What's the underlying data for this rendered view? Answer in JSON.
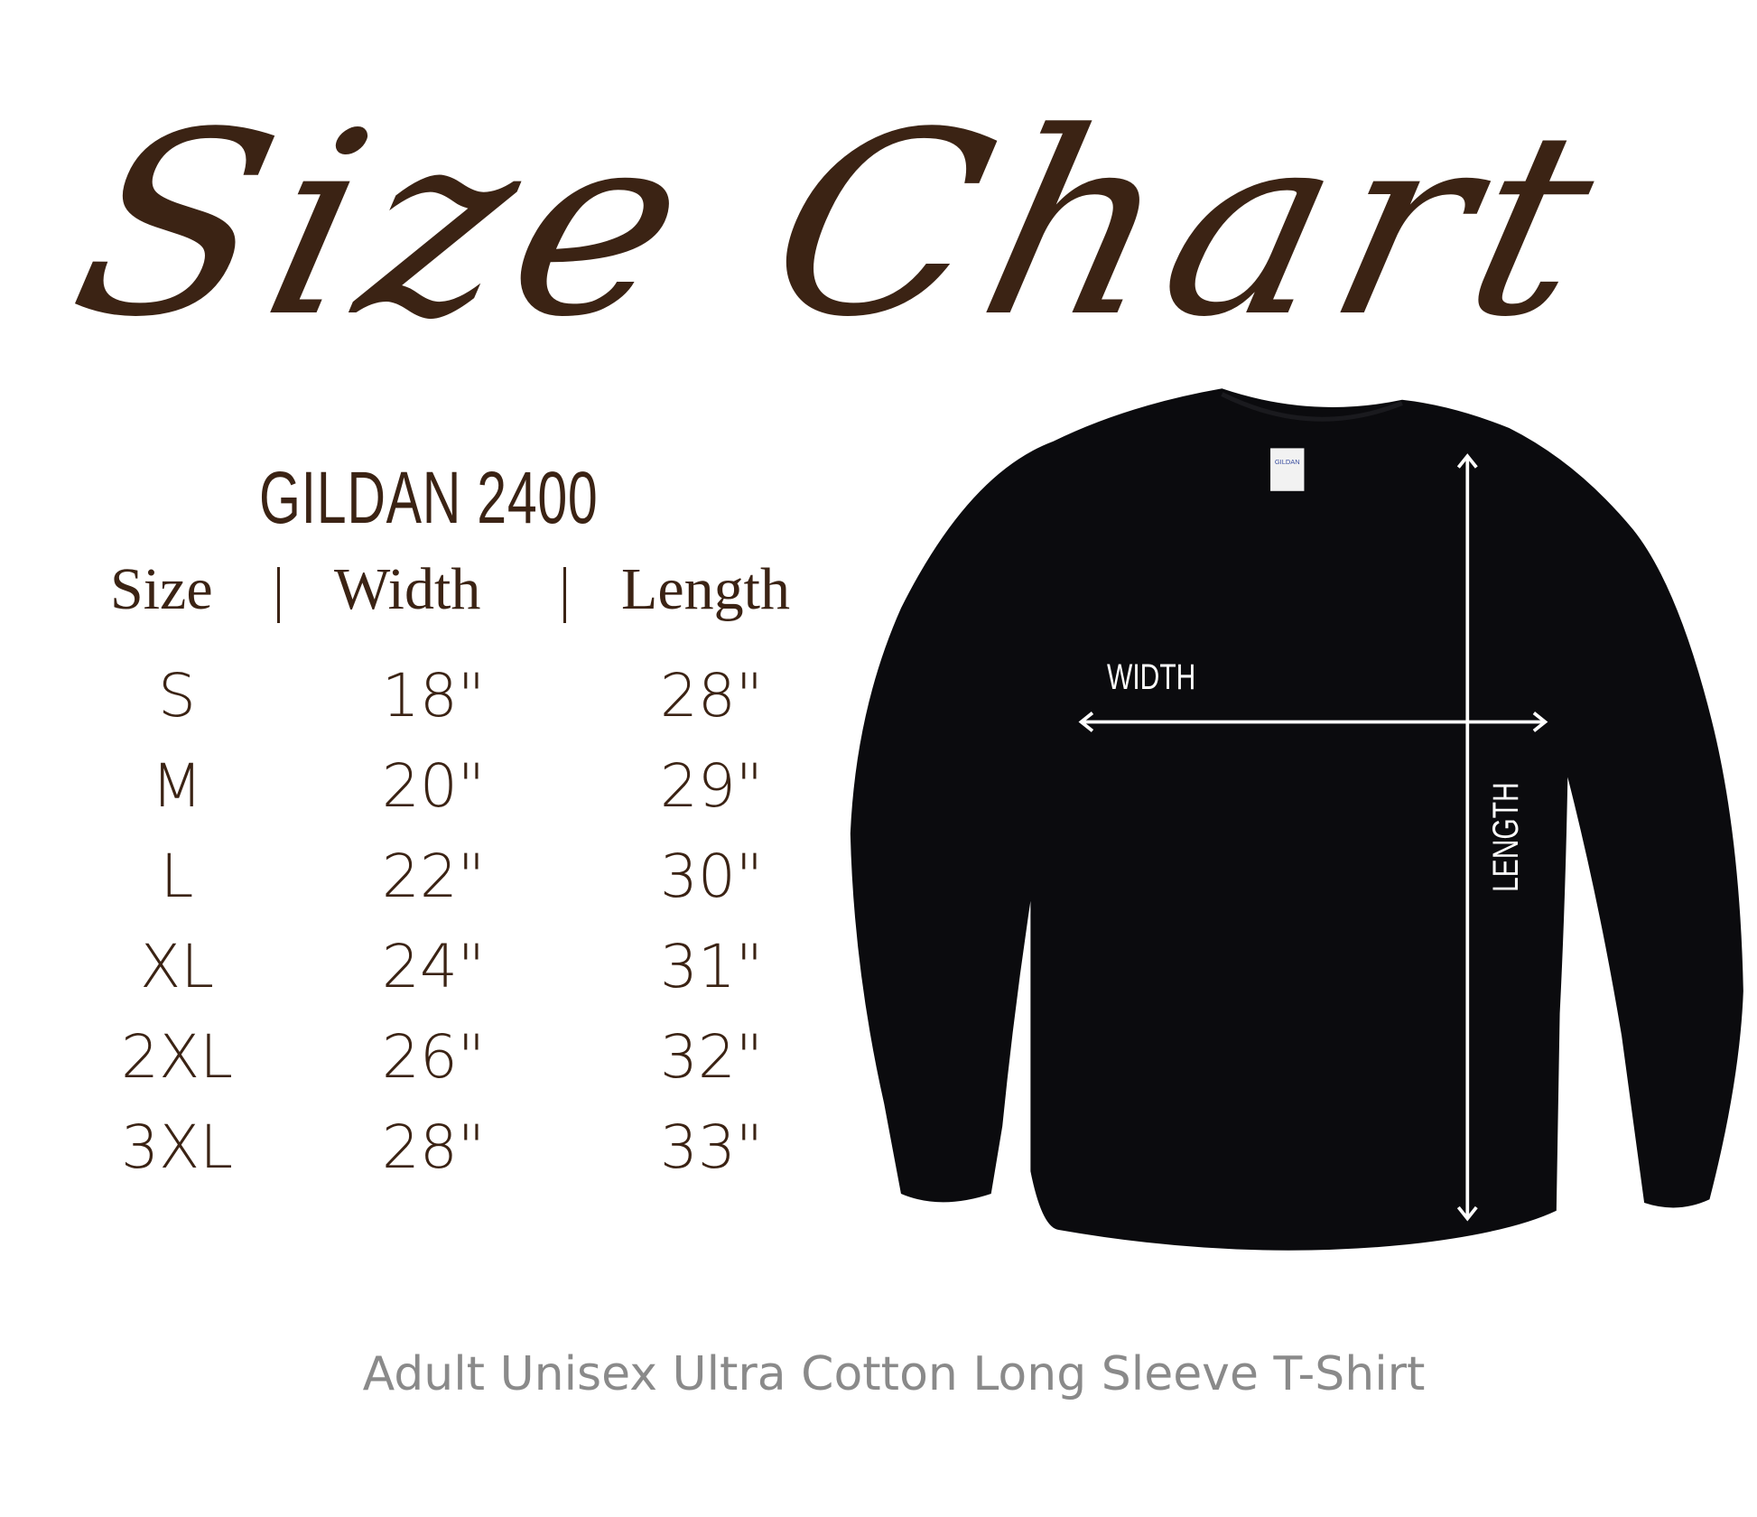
{
  "title": "Size Chart",
  "model": "GILDAN 2400",
  "table": {
    "headers": [
      "Size",
      "Width",
      "Length"
    ],
    "rows": [
      [
        "S",
        "18\"",
        "28\""
      ],
      [
        "M",
        "20\"",
        "29\""
      ],
      [
        "L",
        "22\"",
        "30\""
      ],
      [
        "XL",
        "24\"",
        "31\""
      ],
      [
        "2XL",
        "26\"",
        "32\""
      ],
      [
        "3XL",
        "28\"",
        "33\""
      ]
    ]
  },
  "diagram": {
    "width_label": "WIDTH",
    "length_label": "LENGTH",
    "tag_text": "GILDAN"
  },
  "caption": "Adult Unisex Ultra Cotton Long Sleeve T-Shirt",
  "colors": {
    "text_brown": "#3b2314",
    "caption_gray": "#8a8a8a",
    "shirt": "#0b0b0e"
  }
}
